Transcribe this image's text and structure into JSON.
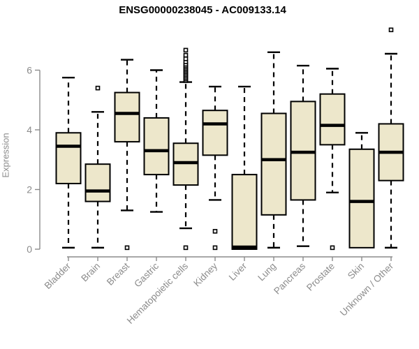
{
  "chart_data": {
    "type": "boxplot",
    "title": "ENSG00000238045 - AC009133.14",
    "ylabel": "Expression",
    "xlabel": "",
    "ylim": [
      0,
      7.5
    ],
    "yticks": [
      0,
      2,
      4,
      6
    ],
    "grid": false,
    "legend": "none",
    "box_fill_color": "#ede7cb",
    "box_stroke_color": "#000000",
    "axis_color": "#8b8b8b",
    "label_color": "#8b8b8b",
    "title_color": "#000000",
    "categories": [
      "Bladder",
      "Brain",
      "Breast",
      "Gastric",
      "Hematopoietic cells",
      "Kidney",
      "Liver",
      "Lung",
      "Pancreas",
      "Prostate",
      "Skin",
      "Unknown / Other"
    ],
    "series": [
      {
        "category": "Bladder",
        "whislo": 0.05,
        "q1": 2.2,
        "med": 3.45,
        "q3": 3.9,
        "whishi": 5.75,
        "outliers": []
      },
      {
        "category": "Brain",
        "whislo": 0.05,
        "q1": 1.6,
        "med": 1.95,
        "q3": 2.85,
        "whishi": 4.6,
        "outliers": [
          5.4
        ]
      },
      {
        "category": "Breast",
        "whislo": 1.3,
        "q1": 3.6,
        "med": 4.55,
        "q3": 5.25,
        "whishi": 6.35,
        "outliers": [
          0.05
        ]
      },
      {
        "category": "Gastric",
        "whislo": 1.25,
        "q1": 2.5,
        "med": 3.3,
        "q3": 4.4,
        "whishi": 6.0,
        "outliers": []
      },
      {
        "category": "Hematopoietic cells",
        "whislo": 0.7,
        "q1": 2.15,
        "med": 2.9,
        "q3": 3.55,
        "whishi": 5.6,
        "outliers": [
          0.05,
          5.65,
          5.7,
          5.75,
          5.8,
          5.85,
          5.9,
          5.95,
          6.0,
          6.05,
          6.1,
          6.15,
          6.2,
          6.28,
          6.38,
          6.5,
          6.67
        ]
      },
      {
        "category": "Kidney",
        "whislo": 1.65,
        "q1": 3.15,
        "med": 4.2,
        "q3": 4.65,
        "whishi": 5.45,
        "outliers": [
          0.6,
          0.05
        ]
      },
      {
        "category": "Liver",
        "whislo": 0.0,
        "q1": 0.0,
        "med": 0.07,
        "q3": 2.5,
        "whishi": 5.45,
        "outliers": []
      },
      {
        "category": "Lung",
        "whislo": 0.05,
        "q1": 1.15,
        "med": 3.0,
        "q3": 4.55,
        "whishi": 6.6,
        "outliers": []
      },
      {
        "category": "Pancreas",
        "whislo": 0.1,
        "q1": 1.65,
        "med": 3.25,
        "q3": 4.95,
        "whishi": 6.15,
        "outliers": []
      },
      {
        "category": "Prostate",
        "whislo": 1.9,
        "q1": 3.5,
        "med": 4.15,
        "q3": 5.2,
        "whishi": 6.05,
        "outliers": [
          0.05
        ]
      },
      {
        "category": "Skin",
        "whislo": 0.05,
        "q1": 0.05,
        "med": 1.6,
        "q3": 3.35,
        "whishi": 3.9,
        "outliers": []
      },
      {
        "category": "Unknown / Other",
        "whislo": 0.05,
        "q1": 2.3,
        "med": 3.25,
        "q3": 4.2,
        "whishi": 6.55,
        "outliers": [
          7.35
        ]
      }
    ]
  }
}
